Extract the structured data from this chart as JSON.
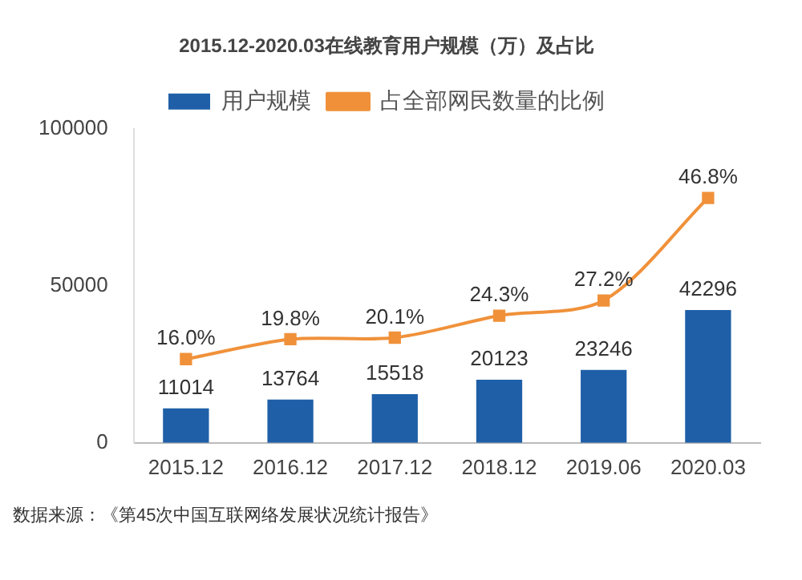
{
  "chart_data": {
    "type": "bar",
    "title": "2015.12-2020.03在线教育用户规模（万）及占比",
    "categories": [
      "2015.12",
      "2016.12",
      "2017.12",
      "2018.12",
      "2019.06",
      "2020.03"
    ],
    "series": [
      {
        "name": "用户规模",
        "color": "#1f5fa8",
        "values": [
          11014,
          13764,
          15518,
          20123,
          23246,
          42296
        ],
        "value_labels": [
          "11014",
          "13764",
          "15518",
          "20123",
          "23246",
          "42296"
        ]
      },
      {
        "name": "占全部网民数量的比例",
        "type": "line",
        "axis": "y2",
        "color": "#f0913a",
        "marker": "square",
        "values": [
          16.0,
          19.8,
          20.1,
          24.3,
          27.2,
          46.8
        ],
        "value_labels": [
          "16.0%",
          "19.8%",
          "20.1%",
          "24.3%",
          "27.2%",
          "46.8%"
        ]
      }
    ],
    "ylim": [
      0,
      100000
    ],
    "yticks": [
      0,
      50000,
      100000
    ],
    "y2lim": [
      0,
      60
    ],
    "tick_labels": [
      "x",
      "y"
    ],
    "grid": false,
    "legend": "top",
    "annotations": [
      "数据来源：《第45次中国互联网络发展状况统计报告》"
    ]
  }
}
